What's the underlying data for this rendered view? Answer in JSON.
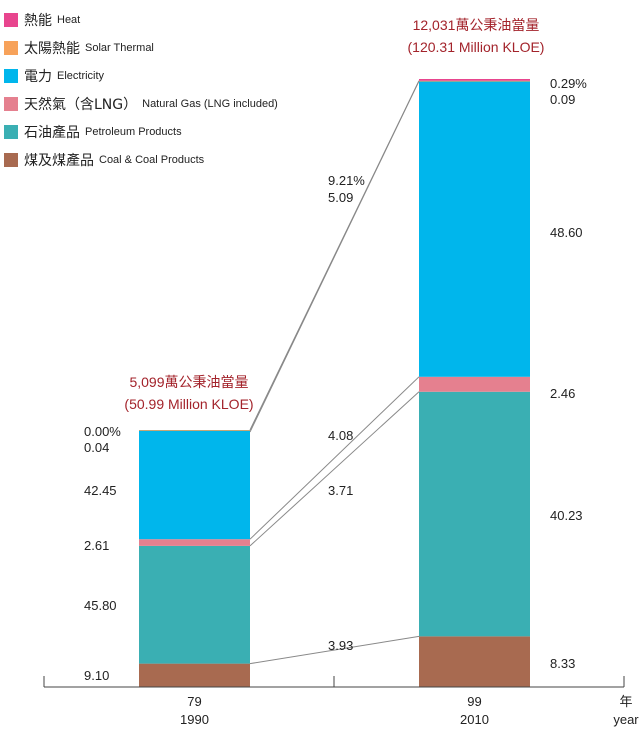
{
  "legend": [
    {
      "zh": "熱能",
      "en": "Heat",
      "color": "#e8458e"
    },
    {
      "zh": "太陽熱能",
      "en": "Solar Thermal",
      "color": "#f7a25a"
    },
    {
      "zh": "電力",
      "en": "Electricity",
      "color": "#00b6ec"
    },
    {
      "zh": "天然氣（含LNG）",
      "en": "Natural Gas (LNG included)",
      "color": "#e5808f"
    },
    {
      "zh": "石油產品",
      "en": "Petroleum Products",
      "color": "#3aafb3"
    },
    {
      "zh": "煤及煤產品",
      "en": "Coal & Coal Products",
      "color": "#a86a50"
    }
  ],
  "axis": {
    "unit_zh": "年",
    "unit_en": "year"
  },
  "chart_data": {
    "type": "bar",
    "stacked": true,
    "categories": [
      {
        "roc": "79",
        "ad": "1990"
      },
      {
        "roc": "99",
        "ad": "2010"
      }
    ],
    "totals": [
      {
        "zh": "5,099萬公秉油當量",
        "en": "(50.99 Million KLOE)",
        "value": 50.99
      },
      {
        "zh": "12,031萬公秉油當量",
        "en": "(120.31 Million KLOE)",
        "value": 120.31
      }
    ],
    "total_label_color": "#a3232b",
    "series": [
      {
        "name": "煤及煤產品 Coal & Coal Products",
        "values": [
          9.1,
          8.33
        ],
        "labels": [
          "9.10",
          "8.33"
        ]
      },
      {
        "name": "石油產品 Petroleum Products",
        "values": [
          45.8,
          40.23
        ],
        "labels": [
          "45.80",
          "40.23"
        ]
      },
      {
        "name": "天然氣（含LNG） Natural Gas (LNG included)",
        "values": [
          2.61,
          2.46
        ],
        "labels": [
          "2.61",
          "2.46"
        ]
      },
      {
        "name": "電力 Electricity",
        "values": [
          42.45,
          48.6
        ],
        "labels": [
          "42.45",
          "48.60"
        ]
      },
      {
        "name": "太陽熱能 Solar Thermal",
        "values": [
          0.04,
          0.09
        ],
        "labels": [
          "0.04",
          "0.09"
        ]
      },
      {
        "name": "熱能 Heat",
        "values": [
          0.0,
          0.29
        ],
        "labels": [
          "0.00%",
          "0.29%"
        ]
      }
    ],
    "growth": [
      {
        "label": "3.93",
        "series": 0
      },
      {
        "label": "3.71",
        "series": 1
      },
      {
        "label": "4.08",
        "series": 2
      },
      {
        "label": "5.09",
        "series": 3
      },
      {
        "label": "9.21%",
        "series": 5
      }
    ]
  }
}
